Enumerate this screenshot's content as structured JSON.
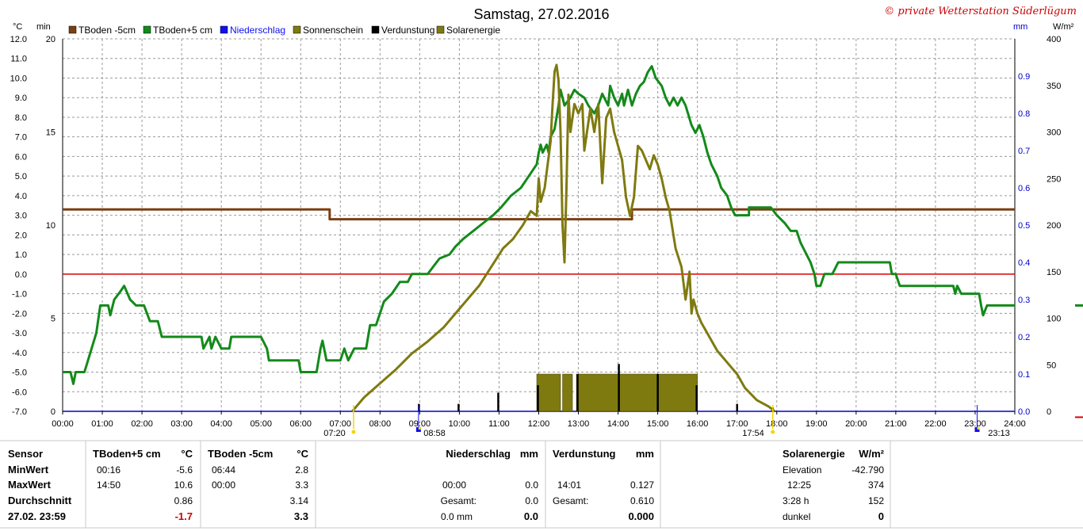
{
  "title": "Samstag, 27.02.2016",
  "copyright": "© private Wetterstation Süderlügum",
  "legend": [
    {
      "label": "TBoden -5cm",
      "color": "#7b3f12"
    },
    {
      "label": "TBoden+5 cm",
      "color": "#138a1a"
    },
    {
      "label": "Niederschlag",
      "color": "#1010ee"
    },
    {
      "label": "Sonnenschein",
      "color": "#7f7a10"
    },
    {
      "label": "Verdunstung",
      "color": "#000000"
    },
    {
      "label": "Solarenergie",
      "color": "#7f7a10"
    }
  ],
  "units": {
    "celsius": "°C",
    "minutes": "min",
    "mm": "mm",
    "wm2": "W/m²"
  },
  "markers": {
    "sunrise": "07:20",
    "rain_time": "08:58",
    "sunset": "17:54",
    "end_time": "23:13"
  },
  "chart_data": {
    "type": "line",
    "x_axis": {
      "label": "",
      "range_hours": [
        0,
        24
      ],
      "ticks": [
        "00:00",
        "01:00",
        "02:00",
        "03:00",
        "04:00",
        "05:00",
        "06:00",
        "07:00",
        "08:00",
        "09:00",
        "10:00",
        "11:00",
        "12:00",
        "13:00",
        "14:00",
        "15:00",
        "16:00",
        "17:00",
        "18:00",
        "19:00",
        "20:00",
        "21:00",
        "22:00",
        "23:00",
        "24:00"
      ]
    },
    "y_axes": {
      "temperature": {
        "unit": "°C",
        "range": [
          -7.0,
          12.0
        ],
        "ticks": [
          "12.0",
          "11.0",
          "10.0",
          "9.0",
          "8.0",
          "7.0",
          "6.0",
          "5.0",
          "4.0",
          "3.0",
          "2.0",
          "1.0",
          "0.0",
          "-1.0",
          "-2.0",
          "-3.0",
          "-4.0",
          "-5.0",
          "-6.0",
          "-7.0"
        ]
      },
      "minutes": {
        "unit": "min",
        "range": [
          0,
          20
        ],
        "ticks": [
          "20",
          "15",
          "10",
          "5",
          "0"
        ]
      },
      "precip": {
        "unit": "mm",
        "range": [
          0.0,
          1.0
        ],
        "ticks": [
          "0.9",
          "0.8",
          "0.7",
          "0.6",
          "0.5",
          "0.4",
          "0.3",
          "0.2",
          "0.1",
          "0.0"
        ]
      },
      "solar": {
        "unit": "W/m²",
        "range": [
          0,
          400
        ],
        "ticks": [
          "400",
          "350",
          "300",
          "250",
          "200",
          "150",
          "100",
          "50",
          "0"
        ]
      }
    },
    "zero_line_temperature": 0.0,
    "series": [
      {
        "name": "TBoden -5cm",
        "axis": "temperature",
        "color": "#7b3f12",
        "points": [
          [
            0,
            3.3
          ],
          [
            6.73,
            3.3
          ],
          [
            6.73,
            2.8
          ],
          [
            14.35,
            2.8
          ],
          [
            14.35,
            3.3
          ],
          [
            24,
            3.3
          ]
        ]
      },
      {
        "name": "TBoden+5 cm",
        "axis": "temperature",
        "color": "#138a1a",
        "points": [
          [
            0,
            -5.0
          ],
          [
            0.2,
            -5.0
          ],
          [
            0.27,
            -5.6
          ],
          [
            0.33,
            -5.0
          ],
          [
            0.55,
            -5.0
          ],
          [
            0.7,
            -4.0
          ],
          [
            0.85,
            -3.0
          ],
          [
            0.95,
            -1.6
          ],
          [
            1.15,
            -1.6
          ],
          [
            1.2,
            -2.1
          ],
          [
            1.3,
            -1.3
          ],
          [
            1.45,
            -0.9
          ],
          [
            1.55,
            -0.6
          ],
          [
            1.7,
            -1.3
          ],
          [
            1.85,
            -1.6
          ],
          [
            2.05,
            -1.6
          ],
          [
            2.2,
            -2.4
          ],
          [
            2.4,
            -2.4
          ],
          [
            2.5,
            -3.2
          ],
          [
            3.5,
            -3.2
          ],
          [
            3.55,
            -3.8
          ],
          [
            3.7,
            -3.2
          ],
          [
            3.75,
            -3.8
          ],
          [
            3.85,
            -3.2
          ],
          [
            4.0,
            -3.8
          ],
          [
            4.2,
            -3.8
          ],
          [
            4.25,
            -3.2
          ],
          [
            5.0,
            -3.2
          ],
          [
            5.15,
            -3.8
          ],
          [
            5.2,
            -4.4
          ],
          [
            5.95,
            -4.4
          ],
          [
            6.0,
            -5.0
          ],
          [
            6.4,
            -5.0
          ],
          [
            6.5,
            -3.8
          ],
          [
            6.55,
            -3.4
          ],
          [
            6.65,
            -4.4
          ],
          [
            7.0,
            -4.4
          ],
          [
            7.1,
            -3.8
          ],
          [
            7.2,
            -4.4
          ],
          [
            7.35,
            -3.8
          ],
          [
            7.65,
            -3.8
          ],
          [
            7.75,
            -2.6
          ],
          [
            7.9,
            -2.6
          ],
          [
            8.0,
            -2.0
          ],
          [
            8.1,
            -1.4
          ],
          [
            8.3,
            -1.0
          ],
          [
            8.5,
            -0.4
          ],
          [
            8.7,
            -0.4
          ],
          [
            8.8,
            0.0
          ],
          [
            9.2,
            0.0
          ],
          [
            9.35,
            0.4
          ],
          [
            9.5,
            0.8
          ],
          [
            9.75,
            1.0
          ],
          [
            9.9,
            1.4
          ],
          [
            10.1,
            1.8
          ],
          [
            10.35,
            2.2
          ],
          [
            10.6,
            2.6
          ],
          [
            10.85,
            3.0
          ],
          [
            11.05,
            3.4
          ],
          [
            11.3,
            4.0
          ],
          [
            11.55,
            4.4
          ],
          [
            11.75,
            5.0
          ],
          [
            11.95,
            5.6
          ],
          [
            12.0,
            6.2
          ],
          [
            12.05,
            6.6
          ],
          [
            12.1,
            6.2
          ],
          [
            12.2,
            6.6
          ],
          [
            12.25,
            6.2
          ],
          [
            12.3,
            7.0
          ],
          [
            12.4,
            7.4
          ],
          [
            12.5,
            8.6
          ],
          [
            12.55,
            9.4
          ],
          [
            12.65,
            8.6
          ],
          [
            12.8,
            9.0
          ],
          [
            12.9,
            9.4
          ],
          [
            13.0,
            9.2
          ],
          [
            13.15,
            9.0
          ],
          [
            13.25,
            8.6
          ],
          [
            13.4,
            8.2
          ],
          [
            13.5,
            8.6
          ],
          [
            13.6,
            9.2
          ],
          [
            13.75,
            8.6
          ],
          [
            13.8,
            9.6
          ],
          [
            13.9,
            9.0
          ],
          [
            14.0,
            8.6
          ],
          [
            14.1,
            9.2
          ],
          [
            14.15,
            8.6
          ],
          [
            14.25,
            9.4
          ],
          [
            14.35,
            8.6
          ],
          [
            14.45,
            9.2
          ],
          [
            14.55,
            9.6
          ],
          [
            14.65,
            9.8
          ],
          [
            14.75,
            10.3
          ],
          [
            14.85,
            10.6
          ],
          [
            14.95,
            10.0
          ],
          [
            15.1,
            9.6
          ],
          [
            15.2,
            9.0
          ],
          [
            15.3,
            8.6
          ],
          [
            15.4,
            9.0
          ],
          [
            15.5,
            8.6
          ],
          [
            15.6,
            9.0
          ],
          [
            15.7,
            8.6
          ],
          [
            15.85,
            7.6
          ],
          [
            15.95,
            7.2
          ],
          [
            16.05,
            7.6
          ],
          [
            16.15,
            7.0
          ],
          [
            16.25,
            6.2
          ],
          [
            16.35,
            5.6
          ],
          [
            16.5,
            5.0
          ],
          [
            16.6,
            4.4
          ],
          [
            16.75,
            4.0
          ],
          [
            16.85,
            3.4
          ],
          [
            16.95,
            3.0
          ],
          [
            17.3,
            3.0
          ],
          [
            17.3,
            3.4
          ],
          [
            17.85,
            3.4
          ],
          [
            18.0,
            3.0
          ],
          [
            18.2,
            2.6
          ],
          [
            18.35,
            2.2
          ],
          [
            18.5,
            2.2
          ],
          [
            18.6,
            1.6
          ],
          [
            18.75,
            1.0
          ],
          [
            18.85,
            0.6
          ],
          [
            18.95,
            0.0
          ],
          [
            19.0,
            -0.6
          ],
          [
            19.1,
            -0.6
          ],
          [
            19.2,
            0.0
          ],
          [
            19.4,
            0.0
          ],
          [
            19.55,
            0.6
          ],
          [
            20.25,
            0.6
          ],
          [
            20.35,
            0.6
          ],
          [
            20.5,
            0.6
          ],
          [
            20.85,
            0.6
          ],
          [
            20.9,
            0.0
          ],
          [
            21.0,
            0.0
          ],
          [
            21.1,
            -0.6
          ],
          [
            22.45,
            -0.6
          ],
          [
            22.5,
            -1.0
          ],
          [
            22.55,
            -0.6
          ],
          [
            22.65,
            -1.0
          ],
          [
            23.1,
            -1.0
          ],
          [
            23.15,
            -1.6
          ],
          [
            23.2,
            -2.1
          ],
          [
            23.3,
            -1.6
          ],
          [
            24.0,
            -1.6
          ]
        ]
      },
      {
        "name": "Solarenergie",
        "axis": "solar",
        "color": "#7f7a10",
        "points": [
          [
            7.3,
            0
          ],
          [
            7.6,
            15
          ],
          [
            8.0,
            30
          ],
          [
            8.4,
            45
          ],
          [
            8.8,
            62
          ],
          [
            9.2,
            75
          ],
          [
            9.6,
            90
          ],
          [
            9.9,
            105
          ],
          [
            10.2,
            120
          ],
          [
            10.5,
            135
          ],
          [
            10.8,
            155
          ],
          [
            11.1,
            175
          ],
          [
            11.35,
            185
          ],
          [
            11.6,
            200
          ],
          [
            11.8,
            215
          ],
          [
            11.95,
            210
          ],
          [
            12.0,
            250
          ],
          [
            12.05,
            225
          ],
          [
            12.15,
            240
          ],
          [
            12.3,
            290
          ],
          [
            12.35,
            330
          ],
          [
            12.4,
            365
          ],
          [
            12.45,
            372
          ],
          [
            12.5,
            355
          ],
          [
            12.55,
            300
          ],
          [
            12.6,
            200
          ],
          [
            12.65,
            160
          ],
          [
            12.7,
            240
          ],
          [
            12.75,
            340
          ],
          [
            12.8,
            300
          ],
          [
            12.9,
            330
          ],
          [
            13.0,
            320
          ],
          [
            13.1,
            330
          ],
          [
            13.15,
            280
          ],
          [
            13.3,
            325
          ],
          [
            13.4,
            300
          ],
          [
            13.5,
            330
          ],
          [
            13.6,
            245
          ],
          [
            13.7,
            315
          ],
          [
            13.8,
            325
          ],
          [
            13.9,
            300
          ],
          [
            14.0,
            285
          ],
          [
            14.1,
            270
          ],
          [
            14.2,
            230
          ],
          [
            14.3,
            210
          ],
          [
            14.4,
            230
          ],
          [
            14.5,
            285
          ],
          [
            14.6,
            280
          ],
          [
            14.7,
            270
          ],
          [
            14.8,
            260
          ],
          [
            14.9,
            275
          ],
          [
            15.0,
            265
          ],
          [
            15.1,
            250
          ],
          [
            15.2,
            230
          ],
          [
            15.3,
            215
          ],
          [
            15.45,
            175
          ],
          [
            15.6,
            155
          ],
          [
            15.7,
            120
          ],
          [
            15.8,
            150
          ],
          [
            15.85,
            105
          ],
          [
            15.9,
            120
          ],
          [
            16.0,
            105
          ],
          [
            16.1,
            95
          ],
          [
            16.3,
            80
          ],
          [
            16.5,
            65
          ],
          [
            16.8,
            50
          ],
          [
            17.0,
            40
          ],
          [
            17.2,
            25
          ],
          [
            17.5,
            12
          ],
          [
            17.8,
            5
          ],
          [
            17.95,
            0
          ]
        ]
      }
    ],
    "sunshine_bars": [
      [
        11.95,
        12.55
      ],
      [
        12.6,
        12.85
      ],
      [
        12.95,
        16.0
      ]
    ],
    "sunshine_bar_height_min": 2,
    "evaporation_spikes_mm": [
      [
        8.98,
        0.02
      ],
      [
        9.98,
        0.02
      ],
      [
        10.98,
        0.05
      ],
      [
        11.98,
        0.07
      ],
      [
        12.98,
        0.1
      ],
      [
        14.02,
        0.127
      ],
      [
        15.0,
        0.1
      ],
      [
        15.98,
        0.07
      ],
      [
        17.0,
        0.02
      ],
      [
        17.9,
        0.01
      ]
    ],
    "precip_marks": [
      [
        8.97,
        0.0
      ],
      [
        23.05,
        0.0
      ]
    ]
  },
  "table": {
    "headers": {
      "sensor": "Sensor",
      "tb5": "TBoden+5 cm",
      "tb5_unit": "°C",
      "tbm5": "TBoden -5cm",
      "tbm5_unit": "°C",
      "rain": "Niederschlag",
      "rain_unit": "mm",
      "evap": "Verdunstung",
      "evap_unit": "mm",
      "solar": "Solarenergie",
      "solar_unit": "W/m²"
    },
    "row_labels": {
      "min": "MinWert",
      "max": "MaxWert",
      "avg": "Durchschnitt",
      "date": "27.02. 23:59"
    },
    "tb5": {
      "min_time": "00:16",
      "min_val": "-5.6",
      "max_time": "14:50",
      "max_val": "10.6",
      "avg": "0.86",
      "current": "-1.7"
    },
    "tbm5": {
      "min_time": "06:44",
      "min_val": "2.8",
      "max_time": "00:00",
      "max_val": "3.3",
      "avg": "3.14",
      "current": "3.3"
    },
    "rain": {
      "max_time": "00:00",
      "max_val": "0.0",
      "total_label": "Gesamt:",
      "total_val": "0.0",
      "current_text": "0.0 mm",
      "current_val": "0.0"
    },
    "evap": {
      "max_time": "14:01",
      "max_val": "0.127",
      "total_label": "Gesamt:",
      "total_val": "0.610",
      "current_val": "0.000"
    },
    "solar": {
      "elev_label": "Elevation",
      "elev_val": "-42.790",
      "max_time": "12:25",
      "max_val": "374",
      "dur": "3:28 h",
      "dur_val": "152",
      "state": "dunkel",
      "state_val": "0"
    }
  },
  "colors": {
    "grid": "#9a9a9a",
    "zero_line": "#dd0000",
    "axis_blue": "#0000cc",
    "tb_minus5": "#7b3f12",
    "tb_plus5": "#138a1a",
    "sun": "#7f7a10",
    "evap": "#000000"
  }
}
